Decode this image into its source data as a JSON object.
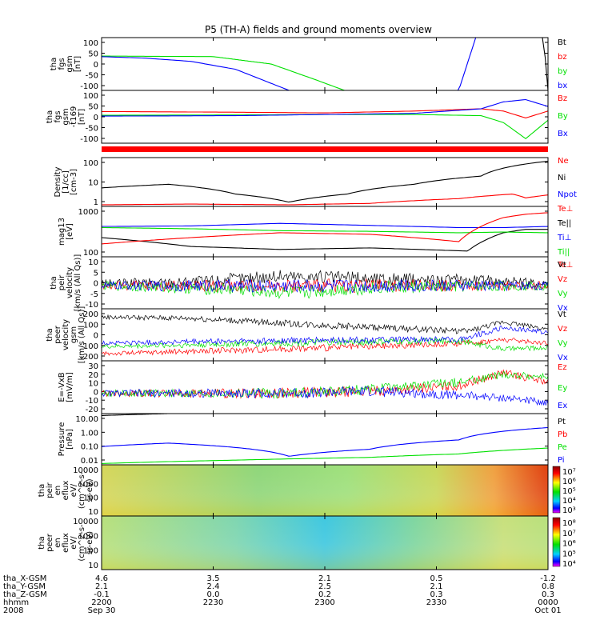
{
  "title": "P5 (TH-A) fields and ground moments overview",
  "colors": {
    "black": "#000000",
    "red": "#ff0000",
    "green": "#00e000",
    "blue": "#0000ff",
    "background": "#ffffff"
  },
  "chart_data": [
    {
      "type": "line",
      "panel": "fgs",
      "ylabel": [
        "tha",
        "fgs",
        "gsm",
        "[nT]"
      ],
      "y_ticks": [
        "100",
        "50",
        "0",
        "-50",
        "-100"
      ],
      "ylim": [
        -100,
        100
      ],
      "series": [
        {
          "name": "Bt",
          "color": "black",
          "x": [
            0.0,
            0.99,
            1.0
          ],
          "y": [
            100,
            100,
            -100
          ]
        },
        {
          "name": "bz",
          "color": "red",
          "x": [],
          "y": []
        },
        {
          "name": "by",
          "color": "green",
          "x": [
            0.0,
            0.25,
            0.38,
            0.48,
            0.56
          ],
          "y": [
            30,
            28,
            0,
            -60,
            -110
          ]
        },
        {
          "name": "bx",
          "color": "blue",
          "x": [
            0.0,
            0.1,
            0.2,
            0.3,
            0.42,
            0.8,
            0.84
          ],
          "y": [
            28,
            22,
            10,
            -20,
            -100,
            -100,
            110
          ]
        }
      ]
    },
    {
      "type": "line",
      "panel": "fgs-t169",
      "ylabel": [
        "tha",
        "fgs",
        "gsm",
        "-t169",
        "[nT]"
      ],
      "y_ticks": [
        "100",
        "50",
        "0",
        "-50",
        "-100"
      ],
      "ylim": [
        -120,
        110
      ],
      "series": [
        {
          "name": "Bz",
          "color": "red",
          "x": [
            0.0,
            0.3,
            0.5,
            0.7,
            0.85,
            0.9,
            0.95,
            1.0
          ],
          "y": [
            18,
            15,
            12,
            20,
            30,
            20,
            -10,
            20
          ]
        },
        {
          "name": "By",
          "color": "green",
          "x": [
            0.0,
            0.3,
            0.5,
            0.7,
            0.85,
            0.9,
            0.95,
            1.0
          ],
          "y": [
            2,
            3,
            5,
            5,
            0,
            -30,
            -100,
            -20
          ]
        },
        {
          "name": "Bx",
          "color": "blue",
          "x": [
            0.0,
            0.3,
            0.5,
            0.7,
            0.85,
            0.9,
            0.95,
            1.0
          ],
          "y": [
            -2,
            0,
            5,
            10,
            30,
            60,
            70,
            40
          ]
        }
      ]
    },
    {
      "type": "line",
      "panel": "density",
      "scale": "log",
      "ylabel": [
        "Density",
        "[1/cc]",
        "[cm-3]"
      ],
      "y_ticks": [
        "100",
        "10",
        "1"
      ],
      "ylim": [
        0.5,
        120
      ],
      "series": [
        {
          "name": "Ne",
          "color": "red",
          "x": [],
          "y": []
        },
        {
          "name": "Ni",
          "color": "black",
          "x": [
            0.0,
            0.15,
            0.3,
            0.42,
            0.55,
            0.7,
            0.85,
            1.0
          ],
          "y": [
            4,
            6,
            2,
            0.8,
            2,
            6,
            15,
            80
          ]
        },
        {
          "name": "Npot",
          "color": "blue",
          "x": [],
          "y": []
        },
        {
          "name": "Te⊥",
          "color": "red",
          "x": [
            0.0,
            0.2,
            0.42,
            0.6,
            0.8,
            0.92,
            0.95,
            1.0
          ],
          "y": [
            0.6,
            0.65,
            0.6,
            0.7,
            1.2,
            2,
            1.3,
            1.8
          ]
        }
      ]
    },
    {
      "type": "line",
      "panel": "temperature",
      "scale": "log",
      "ylabel": [
        "mag13",
        "[eV]"
      ],
      "y_ticks": [
        "1000",
        "100"
      ],
      "ylim": [
        100,
        1000
      ],
      "series": [
        {
          "name": "Te||",
          "color": "black",
          "x": [
            0.0,
            0.2,
            0.4,
            0.6,
            0.82,
            0.9,
            0.95,
            1.0
          ],
          "y": [
            240,
            160,
            140,
            150,
            130,
            300,
            350,
            350
          ]
        },
        {
          "name": "Ti⊥",
          "color": "blue",
          "x": [
            0.0,
            0.2,
            0.4,
            0.6,
            0.8,
            0.9,
            1.0
          ],
          "y": [
            400,
            410,
            460,
            420,
            380,
            380,
            400
          ]
        },
        {
          "name": "Ti||",
          "color": "green",
          "x": [
            0.0,
            0.2,
            0.4,
            0.6,
            0.8,
            0.9,
            1.0
          ],
          "y": [
            380,
            360,
            330,
            320,
            300,
            310,
            300
          ]
        },
        {
          "name": "Te⊥",
          "color": "red",
          "x": [
            0.0,
            0.2,
            0.4,
            0.6,
            0.8,
            0.9,
            0.95,
            1.0
          ],
          "y": [
            180,
            240,
            300,
            280,
            200,
            600,
            700,
            750
          ]
        }
      ]
    },
    {
      "type": "line",
      "panel": "peir-velocity",
      "ylabel": [
        "tha",
        "peir",
        "velocity",
        "[km/s (All Qs)]"
      ],
      "y_ticks": [
        "10",
        "5",
        "0",
        "-5",
        "-10"
      ],
      "ylim": [
        -12,
        15
      ],
      "series": [
        {
          "name": "Vt",
          "color": "black",
          "x": [
            0.0,
            0.2,
            0.4,
            0.55,
            0.7,
            0.85,
            1.0
          ],
          "y": [
            1,
            2,
            5,
            4,
            3,
            3,
            1
          ]
        },
        {
          "name": "Vz",
          "color": "red",
          "x": [
            0.0,
            0.5,
            1.0
          ],
          "y": [
            0,
            0,
            0
          ]
        },
        {
          "name": "Vy",
          "color": "green",
          "x": [
            0.0,
            0.3,
            0.42,
            0.6,
            1.0
          ],
          "y": [
            0,
            -2,
            -4,
            -1,
            0
          ]
        },
        {
          "name": "Vx",
          "color": "blue",
          "x": [
            0.0,
            0.5,
            1.0
          ],
          "y": [
            0,
            0,
            0
          ]
        }
      ]
    },
    {
      "type": "line",
      "panel": "peer-velocity",
      "ylabel": [
        "tha",
        "peer",
        "velocity",
        "gsm",
        "[km/s (All Qs)]"
      ],
      "y_ticks": [
        "200",
        "100",
        "0",
        "-100",
        "-200"
      ],
      "ylim": [
        -210,
        230
      ],
      "series": [
        {
          "name": "Vt",
          "color": "black",
          "x": [
            0.0,
            0.2,
            0.5,
            0.82,
            0.9,
            1.0
          ],
          "y": [
            160,
            150,
            90,
            40,
            120,
            60
          ]
        },
        {
          "name": "Vz",
          "color": "red",
          "x": [
            0.0,
            0.3,
            0.6,
            0.82,
            0.9,
            1.0
          ],
          "y": [
            -150,
            -120,
            -90,
            -60,
            -30,
            -60
          ]
        },
        {
          "name": "Vy",
          "color": "green",
          "x": [
            0.0,
            0.4,
            0.8,
            0.9,
            1.0
          ],
          "y": [
            -90,
            -60,
            -40,
            -110,
            -100
          ]
        },
        {
          "name": "Vx",
          "color": "blue",
          "x": [
            0.0,
            0.4,
            0.8,
            0.9,
            1.0
          ],
          "y": [
            -60,
            -40,
            -30,
            70,
            30
          ]
        }
      ]
    },
    {
      "type": "line",
      "panel": "efield",
      "ylabel": [
        "E=-VxB",
        "[mV/m]"
      ],
      "y_ticks": [
        "30",
        "20",
        "10",
        "0",
        "-10",
        "-20"
      ],
      "ylim": [
        -22,
        35
      ],
      "series": [
        {
          "name": "Ez",
          "color": "red",
          "x": [
            0.0,
            0.4,
            0.6,
            0.8,
            0.9,
            1.0
          ],
          "y": [
            0,
            0,
            2,
            8,
            22,
            12
          ]
        },
        {
          "name": "Ey",
          "color": "green",
          "x": [
            0.0,
            0.4,
            0.6,
            0.8,
            0.9,
            1.0
          ],
          "y": [
            0,
            0,
            4,
            12,
            20,
            18
          ]
        },
        {
          "name": "Ex",
          "color": "blue",
          "x": [
            0.0,
            0.4,
            0.6,
            0.8,
            0.9,
            1.0
          ],
          "y": [
            0,
            0,
            2,
            -2,
            -5,
            -10
          ]
        }
      ]
    },
    {
      "type": "line",
      "panel": "pressure",
      "scale": "log",
      "ylabel": [
        "Pressure",
        "[nPa]"
      ],
      "y_ticks": [
        "10.00",
        "1.00",
        "0.10",
        "0.01"
      ],
      "ylim": [
        0.01,
        20
      ],
      "series": [
        {
          "name": "Pt",
          "color": "black",
          "x": [
            0.0,
            0.15
          ],
          "y": [
            15,
            20
          ]
        },
        {
          "name": "Pb",
          "color": "red",
          "x": [],
          "y": []
        },
        {
          "name": "Pe",
          "color": "green",
          "x": [
            0.0,
            0.3,
            0.6,
            0.8,
            1.0
          ],
          "y": [
            0.012,
            0.02,
            0.03,
            0.05,
            0.12
          ]
        },
        {
          "name": "Pi",
          "color": "blue",
          "x": [
            0.0,
            0.15,
            0.42,
            0.6,
            0.8,
            1.0
          ],
          "y": [
            0.15,
            0.25,
            0.035,
            0.1,
            0.4,
            2.5
          ]
        }
      ]
    },
    {
      "type": "heatmap",
      "panel": "peir-spectrogram",
      "ylabel": [
        "tha",
        "peir",
        "en",
        "eflux",
        "eV/",
        "(cm^2-s-",
        "sr-eV)"
      ],
      "y_ticks": [
        "10000",
        "1000",
        "100",
        "10"
      ],
      "colorbar_ticks": [
        "10⁷",
        "10⁶",
        "10⁵",
        "10⁴",
        "10³"
      ]
    },
    {
      "type": "heatmap",
      "panel": "peer-spectrogram",
      "ylabel": [
        "tha",
        "peer",
        "en",
        "eflux",
        "eV/",
        "(cm^2-s-",
        "sr-eV)"
      ],
      "y_ticks": [
        "10000",
        "1000",
        "100",
        "10"
      ],
      "colorbar_ticks": [
        "10⁸",
        "10⁷",
        "10⁶",
        "10⁵",
        "10⁴"
      ]
    }
  ],
  "footer": {
    "row_labels": [
      "tha_X-GSM",
      "tha_Y-GSM",
      "tha_Z-GSM",
      "hhmm",
      "2008"
    ],
    "columns": [
      {
        "values": [
          "4.6",
          "2.1",
          "-0.1",
          "2200",
          "Sep 30"
        ]
      },
      {
        "values": [
          "3.5",
          "2.4",
          "0.0",
          "2230",
          ""
        ]
      },
      {
        "values": [
          "2.1",
          "2.5",
          "0.2",
          "2300",
          ""
        ]
      },
      {
        "values": [
          "0.5",
          "2.1",
          "0.3",
          "2330",
          ""
        ]
      },
      {
        "values": [
          "-1.2",
          "0.8",
          "0.3",
          "0000",
          "Oct 01"
        ]
      }
    ]
  }
}
